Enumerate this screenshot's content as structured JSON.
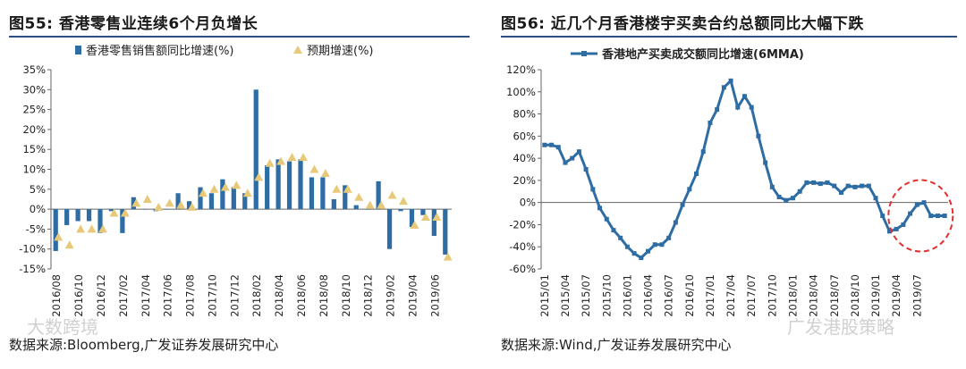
{
  "colors": {
    "series_blue": "#2e6da4",
    "forecast_yellow": "#e8c97a",
    "circle_red": "#e03030",
    "rule_blue": "#2c4f86"
  },
  "left": {
    "title_prefix": "图55:",
    "title_text": "香港零售业连续6个月负增长",
    "source": "数据来源:Bloomberg,广发证券发展研究中心"
  },
  "right": {
    "title_prefix": "图56:",
    "title_text": "近几个月香港楼宇买卖合约总额同比大幅下跌",
    "source": "数据来源:Wind,广发证券发展研究中心"
  },
  "watermarks": {
    "left": "大数跨境",
    "right": "广发港股策略"
  },
  "chart_data": [
    {
      "type": "bar",
      "title": "香港零售业连续6个月负增长",
      "xlabel": "",
      "ylabel": "",
      "ylim": [
        -15,
        35
      ],
      "yticks": [
        35,
        30,
        25,
        20,
        15,
        10,
        5,
        0,
        -5,
        -10,
        -15
      ],
      "ytick_labels": [
        "35%",
        "30%",
        "25%",
        "20%",
        "15%",
        "10%",
        "5%",
        "0%",
        "-5%",
        "-10%",
        "-15%"
      ],
      "categories": [
        "2016/08",
        "2016/09",
        "2016/10",
        "2016/11",
        "2016/12",
        "2017/01",
        "2017/02",
        "2017/03",
        "2017/04",
        "2017/05",
        "2017/06",
        "2017/07",
        "2017/08",
        "2017/09",
        "2017/10",
        "2017/11",
        "2017/12",
        "2018/01",
        "2018/02",
        "2018/03",
        "2018/04",
        "2018/05",
        "2018/06",
        "2018/07",
        "2018/08",
        "2018/09",
        "2018/10",
        "2018/11",
        "2018/12",
        "2019/01",
        "2019/02",
        "2019/03",
        "2019/04",
        "2019/05",
        "2019/06",
        "2019/07"
      ],
      "tick_labels": [
        "2016/08",
        "2016/10",
        "2016/12",
        "2017/02",
        "2017/04",
        "2017/06",
        "2017/08",
        "2017/10",
        "2017/12",
        "2018/02",
        "2018/04",
        "2018/06",
        "2018/08",
        "2018/10",
        "2018/12",
        "2019/02",
        "2019/04",
        "2019/06"
      ],
      "series": [
        {
          "name": "香港零售销售额同比增速(%)",
          "kind": "bar",
          "values": [
            -10.5,
            -4,
            -3,
            -3,
            -6,
            -0.5,
            -6,
            3,
            0,
            -0.5,
            0,
            4,
            2,
            5.5,
            4,
            7.5,
            5.5,
            4,
            30,
            11,
            12.5,
            12,
            12.5,
            8,
            8,
            2.5,
            6,
            1,
            0,
            7,
            -10,
            -0.5,
            -4.5,
            -1.5,
            -6.7,
            -11.4
          ]
        },
        {
          "name": "预期增速(%)",
          "kind": "marker",
          "values": [
            -7,
            -9,
            -5,
            -5,
            -5,
            -1,
            -1,
            1.5,
            2.5,
            0.5,
            1.5,
            1,
            0.5,
            4,
            5,
            5.5,
            6,
            4,
            8,
            11.5,
            12,
            13,
            13,
            10,
            9,
            5,
            5,
            3,
            1,
            1,
            3.5,
            2,
            -4,
            -2,
            -2,
            -12
          ]
        }
      ],
      "legend": "top"
    },
    {
      "type": "line",
      "title": "近几个月香港楼宇买卖合约总额同比大幅下跌",
      "xlabel": "",
      "ylabel": "",
      "ylim": [
        -60,
        120
      ],
      "yticks": [
        120,
        100,
        80,
        60,
        40,
        20,
        0,
        -20,
        -40,
        -60
      ],
      "ytick_labels": [
        "120%",
        "100%",
        "80%",
        "60%",
        "40%",
        "20%",
        "0%",
        "-20%",
        "-40%",
        "-60%"
      ],
      "tick_labels": [
        "2015/01",
        "2015/04",
        "2015/07",
        "2015/10",
        "2016/01",
        "2016/04",
        "2016/07",
        "2016/10",
        "2017/01",
        "2017/04",
        "2017/07",
        "2017/10",
        "2018/01",
        "2018/04",
        "2018/07",
        "2018/10",
        "2019/01",
        "2019/04",
        "2019/07"
      ],
      "series": [
        {
          "name": "香港地产买卖成交额同比增速(6MMA)",
          "values": [
            52,
            52,
            50,
            36,
            40,
            46,
            30,
            12,
            -5,
            -15,
            -25,
            -32,
            -40,
            -46,
            -50,
            -44,
            -38,
            -38,
            -32,
            -18,
            -2,
            12,
            26,
            46,
            72,
            84,
            104,
            110,
            86,
            96,
            86,
            60,
            36,
            14,
            5,
            2,
            4,
            10,
            18,
            18,
            17,
            18,
            15,
            9,
            15,
            14,
            15,
            15,
            4,
            -12,
            -26,
            -24,
            -20,
            -10,
            -2,
            0,
            -12,
            -12,
            -12
          ]
        }
      ],
      "annotation": "dashed red circle around 2019 decline",
      "legend": "top"
    }
  ]
}
